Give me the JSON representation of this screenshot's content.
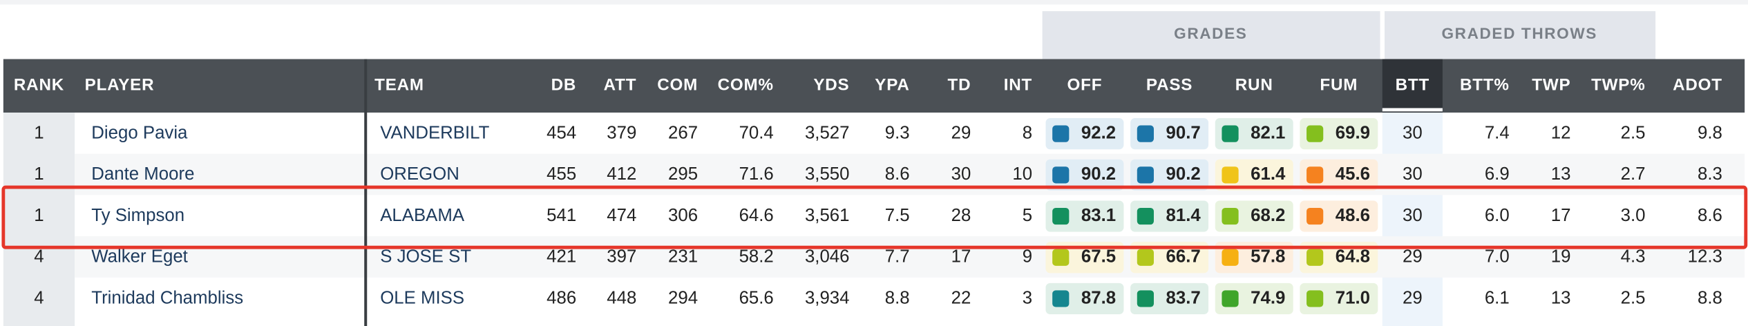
{
  "group_headers": [
    "GRADES",
    "GRADED THROWS"
  ],
  "table": {
    "columns": [
      "RANK",
      "PLAYER",
      "TEAM",
      "DB",
      "ATT",
      "COM",
      "COM%",
      "YDS",
      "YPA",
      "TD",
      "INT",
      "OFF",
      "PASS",
      "RUN",
      "FUM",
      "BTT",
      "BTT%",
      "TWP",
      "TWP%",
      "ADOT"
    ],
    "rows": [
      [
        "1",
        "Diego Pavia",
        "VANDERBILT",
        "454",
        "379",
        "267",
        "70.4",
        "3,527",
        "9.3",
        "29",
        "8",
        "92.2",
        "90.7",
        "82.1",
        "69.9",
        "30",
        "7.4",
        "12",
        "2.5",
        "9.8"
      ],
      [
        "1",
        "Dante Moore",
        "OREGON",
        "455",
        "412",
        "295",
        "71.6",
        "3,550",
        "8.6",
        "30",
        "10",
        "90.2",
        "90.2",
        "61.4",
        "45.6",
        "30",
        "6.9",
        "13",
        "2.7",
        "8.3"
      ],
      [
        "1",
        "Ty Simpson",
        "ALABAMA",
        "541",
        "474",
        "306",
        "64.6",
        "3,561",
        "7.5",
        "28",
        "5",
        "83.1",
        "81.4",
        "68.2",
        "48.6",
        "30",
        "6.0",
        "17",
        "3.0",
        "8.6"
      ],
      [
        "4",
        "Walker Eget",
        "S JOSE ST",
        "421",
        "397",
        "231",
        "58.2",
        "3,046",
        "7.7",
        "17",
        "9",
        "67.5",
        "66.7",
        "57.8",
        "64.8",
        "29",
        "7.0",
        "19",
        "4.3",
        "12.3"
      ],
      [
        "4",
        "Trinidad Chambliss",
        "OLE MISS",
        "486",
        "448",
        "294",
        "65.6",
        "3,934",
        "8.8",
        "22",
        "3",
        "87.8",
        "83.7",
        "74.9",
        "71.0",
        "29",
        "6.1",
        "13",
        "2.5",
        "8.8"
      ]
    ]
  }
}
